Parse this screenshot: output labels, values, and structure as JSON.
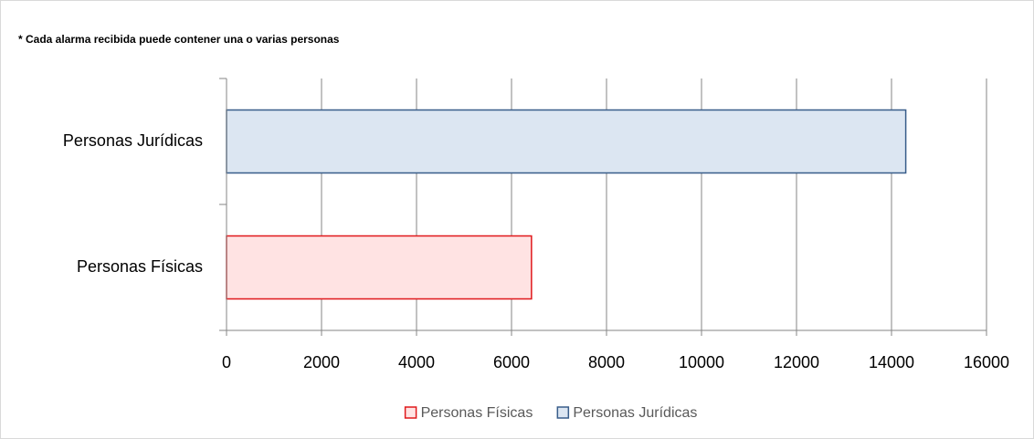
{
  "chart_data": {
    "type": "barh",
    "title": "* Cada alarma recibida puede contener una o varias personas",
    "categories": [
      "Personas Físicas",
      "Personas Jurídicas"
    ],
    "series": [
      {
        "name": "Personas Físicas",
        "color": "#ffe3e3",
        "edgecolor": "#e0181b",
        "values": [
          6420,
          null
        ]
      },
      {
        "name": "Personas Jurídicas",
        "color": "#dce6f2",
        "edgecolor": "#385d8a",
        "values": [
          null,
          14300
        ]
      }
    ],
    "xlim": [
      0,
      16000
    ],
    "xticks": [
      0,
      2000,
      4000,
      6000,
      8000,
      10000,
      12000,
      14000,
      16000
    ],
    "grid": true,
    "legend": "bottom"
  }
}
